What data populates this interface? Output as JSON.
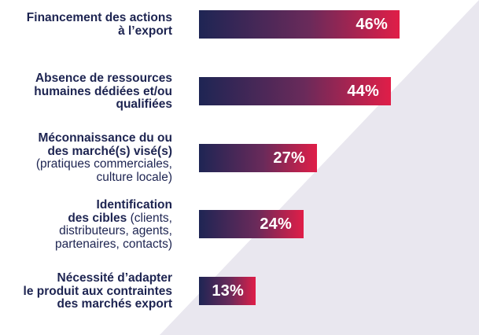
{
  "chart_data": {
    "type": "bar",
    "orientation": "horizontal",
    "value_suffix": "%",
    "categories": [
      {
        "lines": [
          [
            {
              "text": "Financement des actions",
              "bold": true
            }
          ],
          [
            {
              "text": "à l’export",
              "bold": true
            }
          ]
        ]
      },
      {
        "lines": [
          [
            {
              "text": "Absence de ressources",
              "bold": true
            }
          ],
          [
            {
              "text": "humaines dédiées et/ou",
              "bold": true
            }
          ],
          [
            {
              "text": "qualifiées",
              "bold": true
            }
          ]
        ]
      },
      {
        "lines": [
          [
            {
              "text": "Méconnaissance du ou",
              "bold": true
            }
          ],
          [
            {
              "text": "des marché(s) visé(s)",
              "bold": true
            }
          ],
          [
            {
              "text": "(pratiques commerciales,",
              "bold": false
            }
          ],
          [
            {
              "text": "culture locale)",
              "bold": false
            }
          ]
        ]
      },
      {
        "lines": [
          [
            {
              "text": "Identification",
              "bold": true
            }
          ],
          [
            {
              "text": "des cibles",
              "bold": true
            },
            {
              "text": " (clients,",
              "bold": false
            }
          ],
          [
            {
              "text": "distributeurs, agents,",
              "bold": false
            }
          ],
          [
            {
              "text": "partenaires, contacts)",
              "bold": false
            }
          ]
        ]
      },
      {
        "lines": [
          [
            {
              "text": "Nécessité d’adapter",
              "bold": true
            }
          ],
          [
            {
              "text": "le produit aux contraintes",
              "bold": true
            }
          ],
          [
            {
              "text": "des marchés export",
              "bold": true
            }
          ]
        ]
      }
    ],
    "values": [
      46,
      44,
      27,
      24,
      13
    ],
    "value_labels": [
      "46%",
      "44%",
      "27%",
      "24%",
      "13%"
    ],
    "colors": {
      "bar_start": "#1e2554",
      "bar_end": "#e01e48",
      "label_text": "#1d2451",
      "value_text": "#ffffff",
      "background_band": "#e9e7ef"
    }
  }
}
